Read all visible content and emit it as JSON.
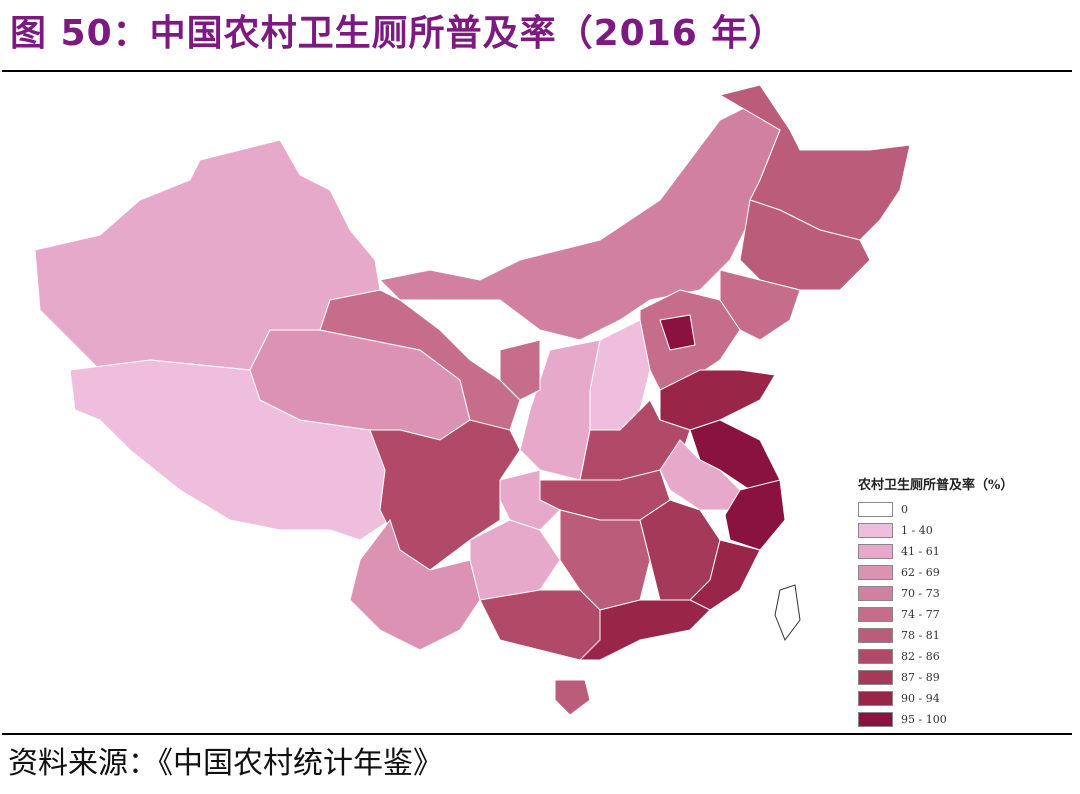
{
  "title": "图 50：中国农村卫生厕所普及率（2016 年）",
  "source": "资料来源：《中国农村统计年鉴》",
  "chart_data": {
    "type": "choropleth",
    "legend": {
      "title": "农村卫生厕所普及率（%）",
      "placement": "bottom-right",
      "classes": [
        {
          "label": "0",
          "color": "#ffffff"
        },
        {
          "label": "1 - 40",
          "color": "#f0bedd"
        },
        {
          "label": "41 - 61",
          "color": "#e6a9c9"
        },
        {
          "label": "62 - 69",
          "color": "#dc93b3"
        },
        {
          "label": "70 - 73",
          "color": "#d2809f"
        },
        {
          "label": "74 - 77",
          "color": "#c76d8c"
        },
        {
          "label": "78 - 81",
          "color": "#bc5c7b"
        },
        {
          "label": "82 - 86",
          "color": "#b14a69"
        },
        {
          "label": "87 - 89",
          "color": "#a53959"
        },
        {
          "label": "90 - 94",
          "color": "#992549"
        },
        {
          "label": "95 - 100",
          "color": "#8a123f"
        }
      ]
    },
    "regions": [
      {
        "id": "xinjiang",
        "class": "41 - 61"
      },
      {
        "id": "tibet",
        "class": "1 - 40"
      },
      {
        "id": "qinghai",
        "class": "62 - 69"
      },
      {
        "id": "gansu",
        "class": "74 - 77"
      },
      {
        "id": "inner-mongolia",
        "class": "70 - 73"
      },
      {
        "id": "heilongjiang",
        "class": "78 - 81"
      },
      {
        "id": "jilin",
        "class": "78 - 81"
      },
      {
        "id": "liaoning",
        "class": "74 - 77"
      },
      {
        "id": "hebei",
        "class": "74 - 77"
      },
      {
        "id": "beijing",
        "class": "95 - 100"
      },
      {
        "id": "shanxi",
        "class": "1 - 40"
      },
      {
        "id": "shaanxi",
        "class": "41 - 61"
      },
      {
        "id": "ningxia",
        "class": "74 - 77"
      },
      {
        "id": "shandong",
        "class": "90 - 94"
      },
      {
        "id": "henan",
        "class": "82 - 86"
      },
      {
        "id": "jiangsu",
        "class": "95 - 100"
      },
      {
        "id": "anhui",
        "class": "41 - 61"
      },
      {
        "id": "zhejiang",
        "class": "95 - 100"
      },
      {
        "id": "hubei",
        "class": "82 - 86"
      },
      {
        "id": "chongqing",
        "class": "41 - 61"
      },
      {
        "id": "sichuan",
        "class": "82 - 86"
      },
      {
        "id": "yunnan",
        "class": "62 - 69"
      },
      {
        "id": "guizhou",
        "class": "41 - 61"
      },
      {
        "id": "hunan",
        "class": "78 - 81"
      },
      {
        "id": "jiangxi",
        "class": "87 - 89"
      },
      {
        "id": "fujian",
        "class": "90 - 94"
      },
      {
        "id": "guangxi",
        "class": "82 - 86"
      },
      {
        "id": "guangdong",
        "class": "90 - 94"
      },
      {
        "id": "hainan",
        "class": "78 - 81"
      },
      {
        "id": "taiwan",
        "class": "0"
      }
    ]
  }
}
